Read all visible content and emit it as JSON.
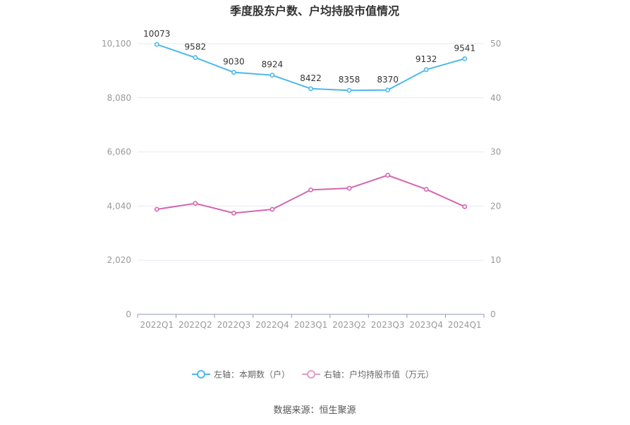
{
  "chart_data": {
    "type": "line",
    "title": "季度股东户数、户均持股市值情况",
    "categories": [
      "2022Q1",
      "2022Q2",
      "2022Q3",
      "2022Q4",
      "2023Q1",
      "2023Q2",
      "2023Q3",
      "2023Q4",
      "2024Q1"
    ],
    "series": [
      {
        "name": "左轴：本期数（户）",
        "axis": "left",
        "color": "#4db8ec",
        "values": [
          10073,
          9582,
          9030,
          8924,
          8422,
          8358,
          8370,
          9132,
          9541
        ],
        "show_labels": true
      },
      {
        "name": "右轴：户均持股市值（万元）",
        "axis": "right",
        "color": "#d466b0",
        "values": [
          19.4,
          20.5,
          18.7,
          19.4,
          23.0,
          23.3,
          25.7,
          23.1,
          19.9
        ],
        "show_labels": false
      }
    ],
    "y_left": {
      "min": 0,
      "max": 10100,
      "ticks": [
        0,
        2020,
        4040,
        6060,
        8080,
        10100
      ],
      "tick_labels": [
        "0",
        "2,020",
        "4,040",
        "6,060",
        "8,080",
        "10,100"
      ]
    },
    "y_right": {
      "min": 0,
      "max": 50,
      "ticks": [
        0,
        10,
        20,
        30,
        40,
        50
      ],
      "tick_labels": [
        "0",
        "10",
        "20",
        "30",
        "40",
        "50"
      ]
    },
    "grid": true,
    "legend_position": "bottom"
  },
  "source": "数据来源：恒生聚源",
  "colors": {
    "grid": "#e6e9f2",
    "axis": "#8f97b8",
    "legend_left": "#4db8ec",
    "legend_right": "#e89ac8"
  }
}
